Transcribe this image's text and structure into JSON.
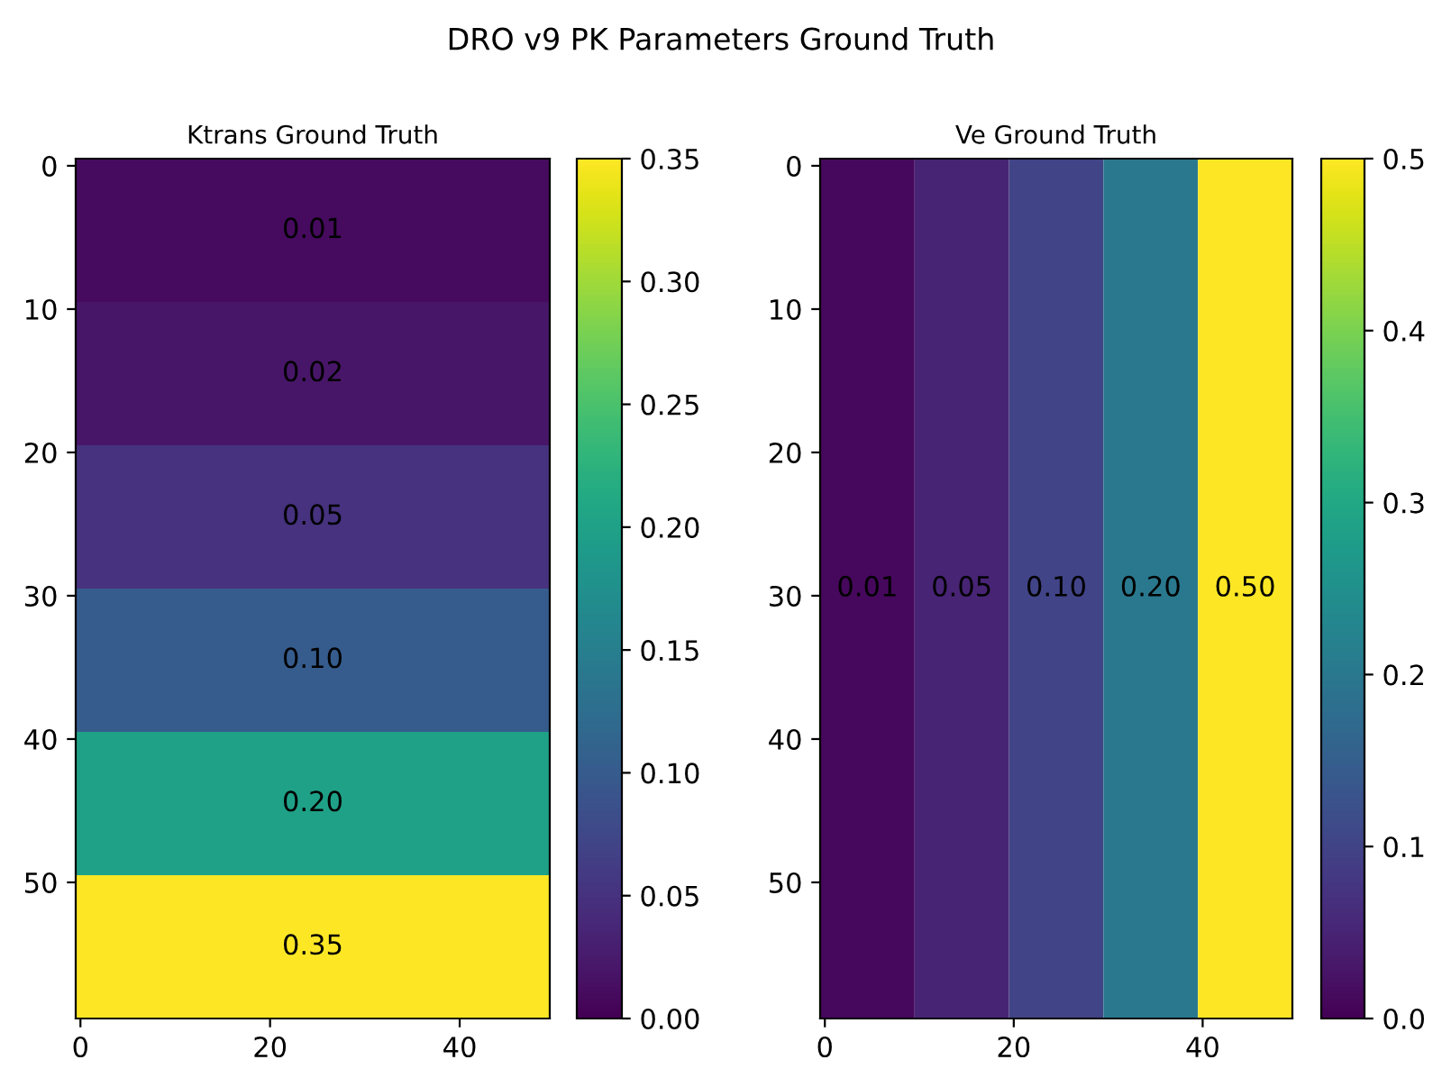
{
  "chart_data": [
    {
      "type": "heatmap",
      "title": "Ktrans Ground Truth",
      "annotations": [
        "DRO v9 PK Parameters Ground Truth"
      ],
      "cells": [
        [
          0.01
        ],
        [
          0.02
        ],
        [
          0.05
        ],
        [
          0.1
        ],
        [
          0.2
        ],
        [
          0.35
        ]
      ],
      "cell_labels": [
        [
          "0.01"
        ],
        [
          "0.02"
        ],
        [
          "0.05"
        ],
        [
          "0.10"
        ],
        [
          "0.20"
        ],
        [
          "0.35"
        ]
      ],
      "xlim": [
        -0.5,
        49.5
      ],
      "ylim": [
        59.5,
        -0.5
      ],
      "xticks": [
        0,
        20,
        40
      ],
      "yticks": [
        0,
        10,
        20,
        30,
        40,
        50
      ],
      "clim": [
        0,
        0.35
      ],
      "cticks": [
        {
          "value": 0,
          "label": "0.00"
        },
        {
          "value": 0.05,
          "label": "0.05"
        },
        {
          "value": 0.1,
          "label": "0.10"
        },
        {
          "value": 0.15,
          "label": "0.15"
        },
        {
          "value": 0.2,
          "label": "0.20"
        },
        {
          "value": 0.25,
          "label": "0.25"
        },
        {
          "value": 0.3,
          "label": "0.30"
        },
        {
          "value": 0.35,
          "label": "0.35"
        }
      ]
    },
    {
      "type": "heatmap",
      "title": "Ve Ground Truth",
      "cells": [
        [
          0.01,
          0.05,
          0.1,
          0.2,
          0.5
        ]
      ],
      "cell_labels": [
        [
          "0.01",
          "0.05",
          "0.10",
          "0.20",
          "0.50"
        ]
      ],
      "xlim": [
        -0.5,
        49.5
      ],
      "ylim": [
        59.5,
        -0.5
      ],
      "xticks": [
        0,
        20,
        40
      ],
      "yticks": [
        0,
        10,
        20,
        30,
        40,
        50
      ],
      "clim": [
        0,
        0.5
      ],
      "cticks": [
        {
          "value": 0,
          "label": "0.0"
        },
        {
          "value": 0.1,
          "label": "0.1"
        },
        {
          "value": 0.2,
          "label": "0.2"
        },
        {
          "value": 0.3,
          "label": "0.3"
        },
        {
          "value": 0.4,
          "label": "0.4"
        },
        {
          "value": 0.5,
          "label": "0.5"
        }
      ]
    }
  ]
}
